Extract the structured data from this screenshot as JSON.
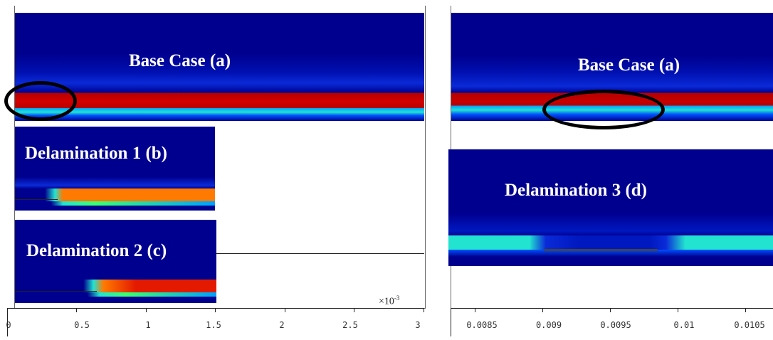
{
  "left_panel": {
    "base_case_title": "Base Case (a)",
    "delam1_title": "Delamination 1 (b)",
    "delam2_title": "Delamination 2 (c)",
    "axis_multiplier": "×10",
    "axis_multiplier_exp": "-3",
    "x_ticks": [
      "0",
      "0.5",
      "1",
      "1.5",
      "2",
      "2.5",
      "3"
    ]
  },
  "right_panel": {
    "base_case_title": "Base Case (a)",
    "delam3_title": "Delamination 3 (d)",
    "x_ticks": [
      "0.0085",
      "0.009",
      "0.0095",
      "0.01",
      "0.0105"
    ]
  },
  "colors": {
    "deep_blue": "#00008f",
    "dark_red": "#b40000",
    "red": "#e41a00",
    "orange": "#ff7a00",
    "cyan": "#22e3d0",
    "green": "#3cff6e"
  }
}
